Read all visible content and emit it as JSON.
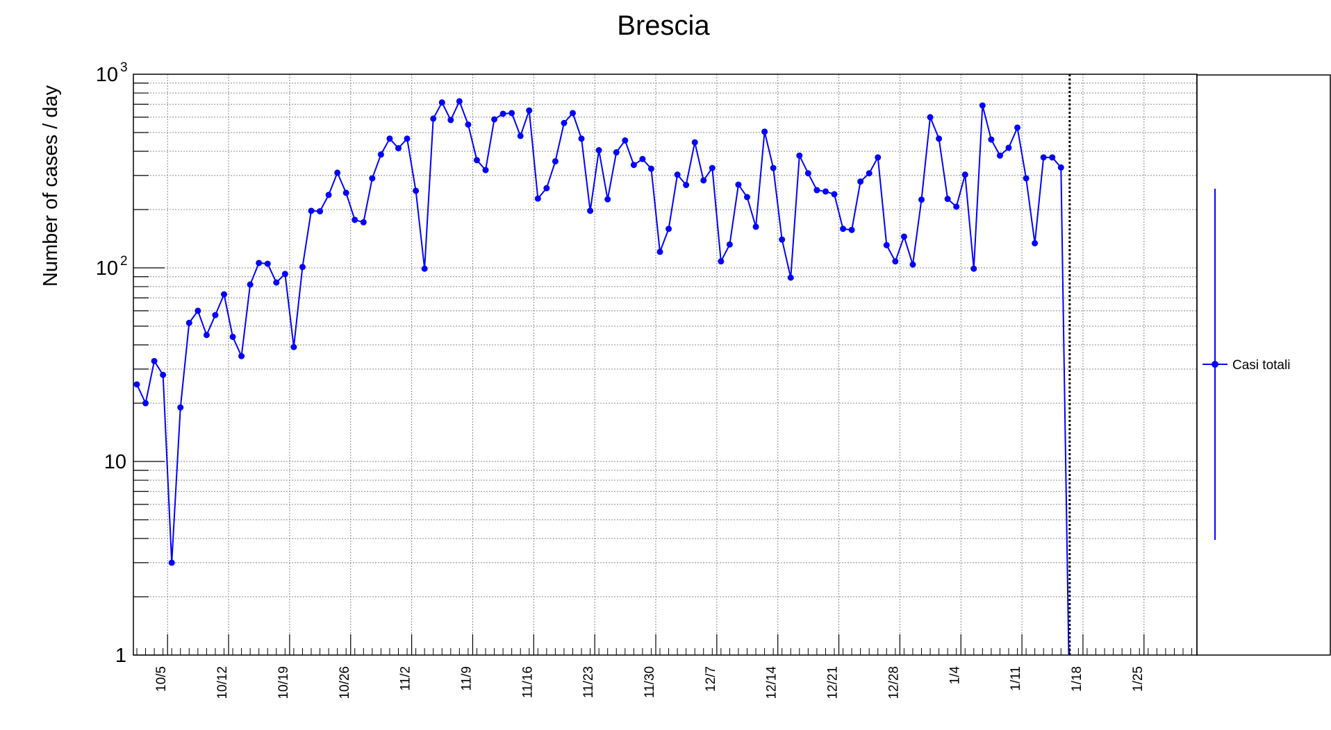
{
  "chart_data": {
    "type": "line",
    "title": "Brescia",
    "xlabel": "",
    "ylabel": "Number of cases / day",
    "yscale": "log",
    "ylim": [
      1,
      1000
    ],
    "y_tick_labels": [
      {
        "value": 1,
        "base": "1",
        "sup": ""
      },
      {
        "value": 10,
        "base": "10",
        "sup": ""
      },
      {
        "value": 100,
        "base": "10",
        "sup": "2"
      },
      {
        "value": 1000,
        "base": "10",
        "sup": "3"
      }
    ],
    "x_tick_labels": [
      "10/5",
      "10/12",
      "10/19",
      "10/26",
      "11/2",
      "11/9",
      "11/16",
      "11/23",
      "11/30",
      "12/7",
      "12/14",
      "12/21",
      "12/28",
      "1/4",
      "1/11",
      "1/18",
      "1/25"
    ],
    "x_start_label": "10/1",
    "grid": true,
    "legend_position": "right",
    "vertical_marker_label": "1/15",
    "series": [
      {
        "name": "Casi totali",
        "color": "#0000ff",
        "values": [
          25,
          20,
          33,
          28,
          3,
          19,
          52,
          60,
          45,
          57,
          73,
          44,
          35,
          82,
          106,
          105,
          84,
          93,
          39,
          101,
          197,
          196,
          238,
          310,
          244,
          177,
          172,
          290,
          385,
          465,
          415,
          465,
          250,
          99,
          590,
          715,
          580,
          725,
          550,
          360,
          320,
          585,
          625,
          630,
          480,
          650,
          228,
          258,
          355,
          560,
          630,
          465,
          197,
          405,
          226,
          395,
          455,
          340,
          365,
          325,
          121,
          159,
          303,
          268,
          445,
          283,
          328,
          108,
          132,
          269,
          232,
          163,
          505,
          328,
          140,
          89,
          380,
          308,
          252,
          248,
          240,
          159,
          157,
          279,
          308,
          372,
          131,
          108,
          145,
          104,
          225,
          600,
          465,
          227,
          207,
          303,
          99,
          690,
          460,
          380,
          417,
          530,
          290,
          134,
          372,
          372,
          330,
          0.5
        ]
      }
    ]
  }
}
